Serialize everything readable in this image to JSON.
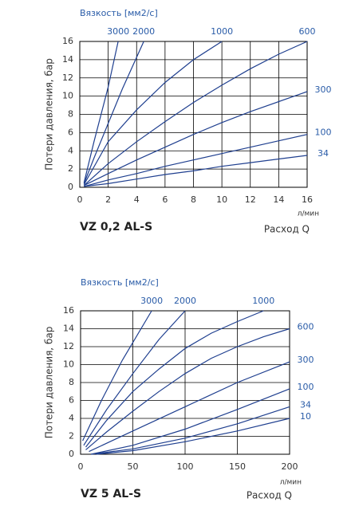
{
  "chart_data": [
    {
      "type": "line",
      "title": "VZ 0,2 AL-S",
      "legend_title": "Вязкость [мм2/с]",
      "ylabel": "Потери давления, бар",
      "xlabel": "Расход Q",
      "xunit": "л/мин",
      "xlim": [
        0,
        16
      ],
      "xticks": [
        0,
        2,
        4,
        6,
        8,
        10,
        12,
        14,
        16
      ],
      "ylim": [
        0,
        16
      ],
      "yticks": [
        0,
        2,
        4,
        6,
        8,
        10,
        12,
        14,
        16
      ],
      "grid": true,
      "series": [
        {
          "name": "3000",
          "color": "#1f3f8f",
          "x": [
            0.3,
            1,
            2,
            2.7
          ],
          "values": [
            0.5,
            5,
            11,
            16
          ]
        },
        {
          "name": "2000",
          "color": "#1f3f8f",
          "x": [
            0.3,
            1,
            2,
            3,
            4.5
          ],
          "values": [
            0.4,
            3.2,
            7,
            10.8,
            16
          ]
        },
        {
          "name": "1000",
          "color": "#1f3f8f",
          "x": [
            0.3,
            2,
            4,
            6,
            8,
            10
          ],
          "values": [
            0.3,
            5,
            8.5,
            11.5,
            14,
            16
          ]
        },
        {
          "name": "600",
          "color": "#1f3f8f",
          "x": [
            0.3,
            2,
            4,
            6,
            8,
            10,
            12,
            14,
            16
          ],
          "values": [
            0.2,
            2.6,
            5,
            7.2,
            9.3,
            11.2,
            13,
            14.6,
            16
          ]
        },
        {
          "name": "300",
          "color": "#1f3f8f",
          "x": [
            0.3,
            2,
            4,
            6,
            8,
            10,
            12,
            14,
            16
          ],
          "values": [
            0.2,
            1.5,
            3,
            4.4,
            5.8,
            7.1,
            8.3,
            9.4,
            10.5
          ]
        },
        {
          "name": "100",
          "color": "#1f3f8f",
          "x": [
            0.3,
            2,
            4,
            6,
            8,
            10,
            12,
            14,
            16
          ],
          "values": [
            0.1,
            0.8,
            1.5,
            2.3,
            3,
            3.7,
            4.4,
            5.1,
            5.8
          ]
        },
        {
          "name": "34",
          "color": "#1f3f8f",
          "x": [
            0.3,
            2,
            4,
            6,
            8,
            10,
            12,
            14,
            16
          ],
          "values": [
            0.1,
            0.4,
            0.9,
            1.4,
            1.8,
            2.3,
            2.7,
            3.1,
            3.5
          ]
        }
      ]
    },
    {
      "type": "line",
      "title": "VZ 5 AL-S",
      "legend_title": "Вязкость [мм2/с]",
      "ylabel": "Потери давления, бар",
      "xlabel": "Расход Q",
      "xunit": "л/мин",
      "xlim": [
        0,
        200
      ],
      "xticks": [
        0,
        50,
        100,
        150,
        200
      ],
      "ylim": [
        0,
        16
      ],
      "yticks": [
        0,
        2,
        4,
        6,
        8,
        10,
        12,
        14,
        16
      ],
      "grid": true,
      "series": [
        {
          "name": "3000",
          "color": "#1f3f8f",
          "x": [
            2,
            20,
            40,
            68
          ],
          "values": [
            1.5,
            6,
            10.5,
            16
          ]
        },
        {
          "name": "2000",
          "color": "#1f3f8f",
          "x": [
            3,
            25,
            50,
            75,
            100
          ],
          "values": [
            1,
            5,
            9,
            12.8,
            16
          ]
        },
        {
          "name": "1000",
          "color": "#1f3f8f",
          "x": [
            5,
            25,
            50,
            75,
            100,
            125,
            150,
            175
          ],
          "values": [
            0.8,
            3.8,
            7,
            9.5,
            11.8,
            13.5,
            14.8,
            16
          ]
        },
        {
          "name": "600",
          "color": "#1f3f8f",
          "x": [
            5,
            25,
            50,
            75,
            100,
            125,
            150,
            175,
            200
          ],
          "values": [
            0.5,
            2.5,
            4.8,
            7,
            9,
            10.7,
            12,
            13.1,
            14
          ]
        },
        {
          "name": "300",
          "color": "#1f3f8f",
          "x": [
            8,
            50,
            100,
            150,
            200
          ],
          "values": [
            0.3,
            2.6,
            5.3,
            8,
            10.3
          ]
        },
        {
          "name": "100",
          "color": "#1f3f8f",
          "x": [
            10,
            50,
            100,
            150,
            200
          ],
          "values": [
            0,
            1,
            2.8,
            5,
            7.3
          ]
        },
        {
          "name": "34",
          "color": "#1f3f8f",
          "x": [
            10,
            50,
            100,
            150,
            200
          ],
          "values": [
            0,
            0.6,
            1.8,
            3.4,
            5.3
          ]
        },
        {
          "name": "10",
          "color": "#1f3f8f",
          "x": [
            15,
            50,
            100,
            150,
            200
          ],
          "values": [
            0,
            0.4,
            1.4,
            2.6,
            4
          ]
        }
      ]
    }
  ]
}
